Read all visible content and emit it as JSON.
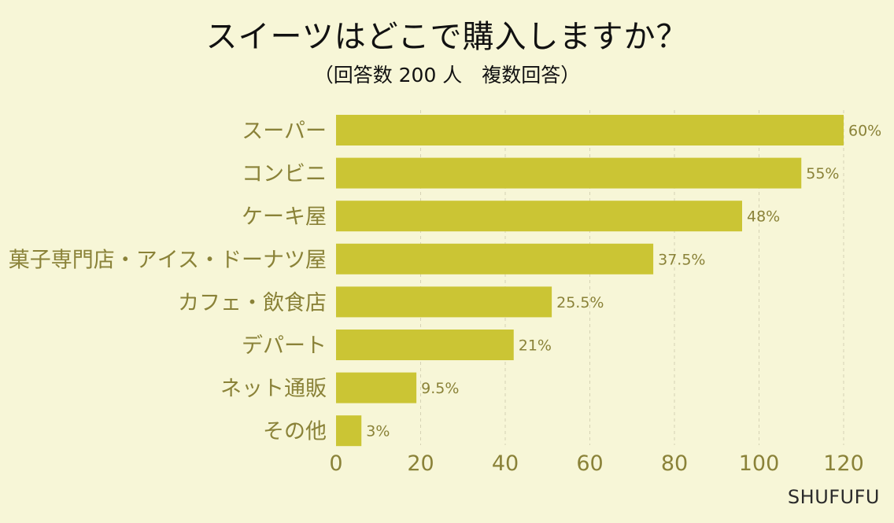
{
  "title": "スイーツはどこで購入しますか？",
  "subtitle": "（回答数 200 人　複数回答）",
  "brand": "SHUFUFU",
  "colors": {
    "bar": "#cbc534",
    "category_text": "#8a8238",
    "value_text": "#8a8238",
    "tick_text": "#8a8238",
    "grid": "#d6d3b5",
    "background": "#f7f6d7"
  },
  "chart_data": {
    "type": "bar",
    "orientation": "horizontal",
    "categories": [
      "スーパー",
      "コンビニ",
      "ケーキ屋",
      "菓子専門店・アイス・ドーナツ屋",
      "カフェ・飲食店",
      "デパート",
      "ネット通販",
      "その他"
    ],
    "values": [
      120,
      110,
      96,
      75,
      51,
      42,
      19,
      6
    ],
    "value_labels": [
      "60%",
      "55%",
      "48%",
      "37.5%",
      "25.5%",
      "21%",
      "9.5%",
      "3%"
    ],
    "xlim": [
      0,
      120
    ],
    "xticks": [
      0,
      20,
      40,
      60,
      80,
      100,
      120
    ],
    "grid": true
  }
}
